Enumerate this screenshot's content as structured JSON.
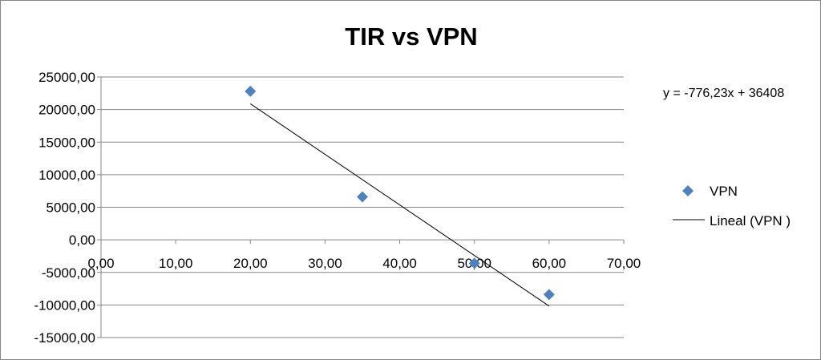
{
  "chart_data": {
    "type": "scatter",
    "title": "TIR vs VPN",
    "xlabel": "",
    "ylabel": "",
    "x_ticks": [
      "0,00",
      "10,00",
      "20,00",
      "30,00",
      "40,00",
      "50,00",
      "60,00",
      "70,00"
    ],
    "y_ticks": [
      "25000,00",
      "20000,00",
      "15000,00",
      "10000,00",
      "5000,00",
      "0,00",
      "-5000,00",
      "-10000,00",
      "-15000,00"
    ],
    "xlim": [
      0,
      70
    ],
    "ylim": [
      -15000,
      25000
    ],
    "grid": "horizontal",
    "legend_position": "right",
    "series": [
      {
        "name": "VPN",
        "kind": "scatter",
        "marker": "diamond",
        "color": "#4f81bd",
        "x": [
          20,
          35,
          50,
          60
        ],
        "y": [
          22800,
          6600,
          -3600,
          -8400
        ]
      },
      {
        "name": "Lineal (VPN )",
        "kind": "trendline",
        "color": "#000000",
        "slope": -776.23,
        "intercept": 36408,
        "x_range": [
          20,
          60
        ]
      }
    ],
    "annotations": [
      {
        "text": "y = -776,23x + 36408"
      }
    ]
  }
}
